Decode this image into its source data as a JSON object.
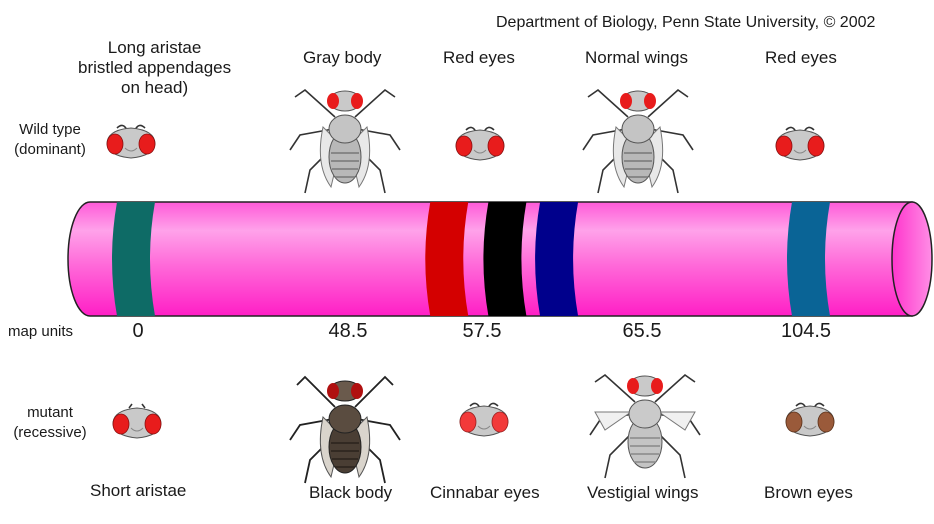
{
  "credit": "Department of Biology, Penn State University, © 2002",
  "row_labels": {
    "wild": [
      "Wild type",
      "(dominant)"
    ],
    "map": "map units",
    "mutant": [
      "mutant",
      "(recessive)"
    ]
  },
  "genes": [
    {
      "wild": [
        "Long aristae",
        "bristled appendages",
        "on head)"
      ],
      "mutant": "Short aristae",
      "map": "0",
      "band_color": "#0e6b66"
    },
    {
      "wild": [
        "Gray body"
      ],
      "mutant": "Black body",
      "map": "48.5",
      "band_color": "#d40000"
    },
    {
      "wild": [
        "Red eyes"
      ],
      "mutant": "Cinnabar eyes",
      "map": "57.5",
      "band_color": "#000000"
    },
    {
      "wild": [
        "Normal wings"
      ],
      "mutant": "Vestigial wings",
      "map": "65.5",
      "band_color": "#00008c"
    },
    {
      "wild": [
        "Red eyes"
      ],
      "mutant": "Brown eyes",
      "map": "104.5",
      "band_color": "#0a6496"
    }
  ],
  "colors": {
    "chromosome": "#ff3fd0",
    "chromosome_light": "#ff9ae8"
  }
}
